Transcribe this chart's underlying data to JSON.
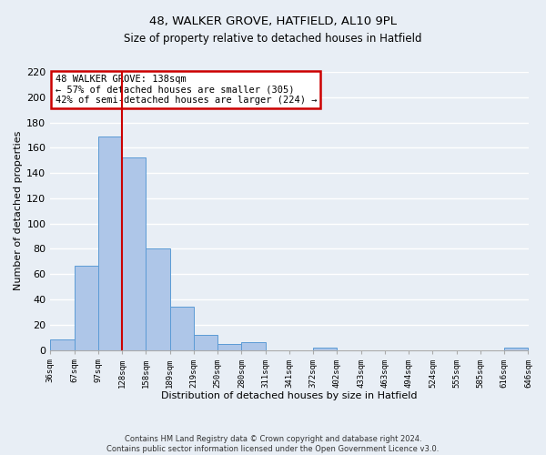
{
  "title": "48, WALKER GROVE, HATFIELD, AL10 9PL",
  "subtitle": "Size of property relative to detached houses in Hatfield",
  "xlabel": "Distribution of detached houses by size in Hatfield",
  "ylabel": "Number of detached properties",
  "bin_labels": [
    "36sqm",
    "67sqm",
    "97sqm",
    "128sqm",
    "158sqm",
    "189sqm",
    "219sqm",
    "250sqm",
    "280sqm",
    "311sqm",
    "341sqm",
    "372sqm",
    "402sqm",
    "433sqm",
    "463sqm",
    "494sqm",
    "524sqm",
    "555sqm",
    "585sqm",
    "616sqm",
    "646sqm"
  ],
  "bar_values": [
    8,
    67,
    169,
    152,
    80,
    34,
    12,
    5,
    6,
    0,
    0,
    2,
    0,
    0,
    0,
    0,
    0,
    0,
    0,
    2
  ],
  "bar_color": "#aec6e8",
  "bar_edge_color": "#5b9bd5",
  "vline_color": "#cc0000",
  "ylim": [
    0,
    220
  ],
  "yticks": [
    0,
    20,
    40,
    60,
    80,
    100,
    120,
    140,
    160,
    180,
    200,
    220
  ],
  "annotation_title": "48 WALKER GROVE: 138sqm",
  "annotation_line1": "← 57% of detached houses are smaller (305)",
  "annotation_line2": "42% of semi-detached houses are larger (224) →",
  "annotation_box_color": "#cc0000",
  "footer_line1": "Contains HM Land Registry data © Crown copyright and database right 2024.",
  "footer_line2": "Contains public sector information licensed under the Open Government Licence v3.0.",
  "bg_color": "#e8eef5"
}
